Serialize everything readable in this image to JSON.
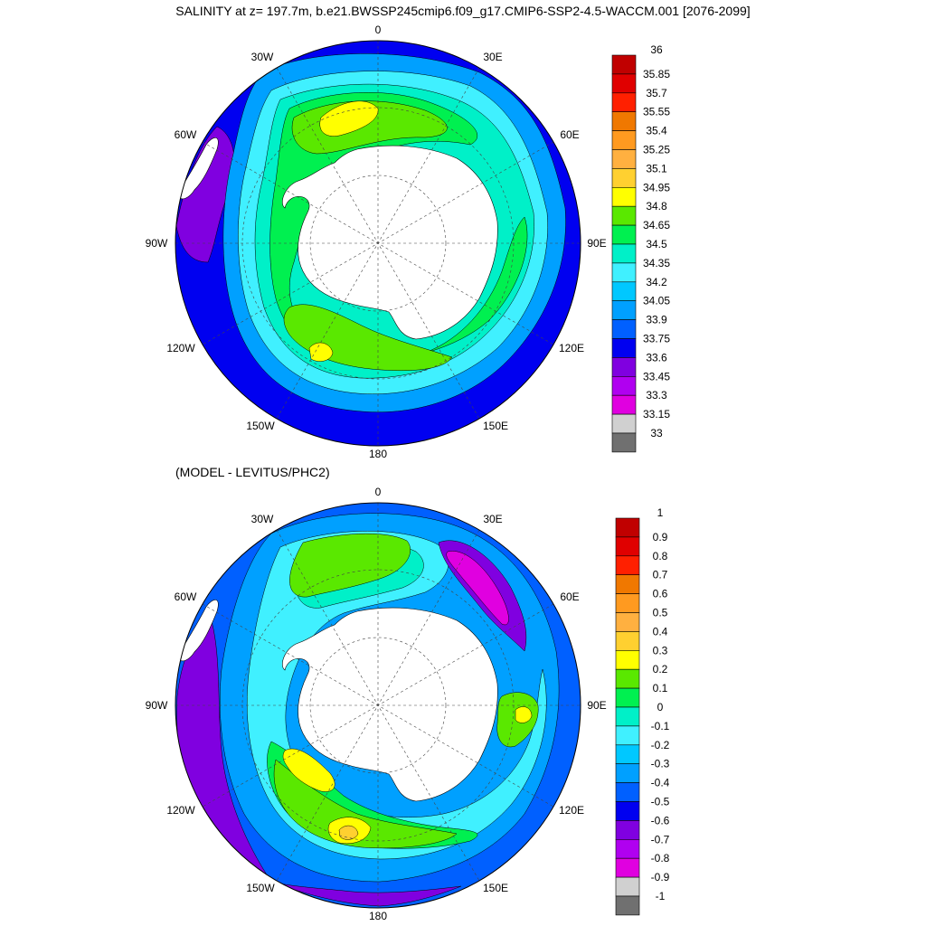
{
  "title": "SALINITY at z= 197.7m, b.e21.BWSSP245cmip6.f09_g17.CMIP6-SSP2-4.5-WACCM.001 [2076-2099]",
  "panels": [
    {
      "subtitle": "",
      "longitude_labels": {
        "north": "0",
        "nne": "30E",
        "ene": "60E",
        "east": "90E",
        "ese": "120E",
        "sse": "150E",
        "south": "180",
        "ssw": "150W",
        "wsw": "120W",
        "west": "90W",
        "wnw": "60W",
        "nnw": "30W"
      },
      "colorbar": {
        "labels": [
          "36",
          "35.85",
          "35.7",
          "35.55",
          "35.4",
          "35.25",
          "35.1",
          "34.95",
          "34.8",
          "34.65",
          "34.5",
          "34.35",
          "34.2",
          "34.05",
          "33.9",
          "33.75",
          "33.6",
          "33.45",
          "33.3",
          "33.15",
          "33"
        ],
        "colors": [
          "#c00000",
          "#e00000",
          "#ff2000",
          "#f07800",
          "#ff9a20",
          "#ffb040",
          "#ffd030",
          "#ffff00",
          "#5ae800",
          "#00f050",
          "#00f0c8",
          "#40f0ff",
          "#00c8ff",
          "#00a0ff",
          "#0060ff",
          "#0000f0",
          "#8000e0",
          "#b000f0",
          "#e000e0",
          "#d0d0d0",
          "#707070"
        ]
      },
      "field_colors": {
        "ocean_background": "#0000f0",
        "land": "#ffffff",
        "low_band": "#8000e0"
      }
    },
    {
      "subtitle": "(MODEL - LEVITUS/PHC2)",
      "longitude_labels": {
        "north": "0",
        "nne": "30E",
        "ene": "60E",
        "east": "90E",
        "ese": "120E",
        "sse": "150E",
        "south": "180",
        "ssw": "150W",
        "wsw": "120W",
        "west": "90W",
        "wnw": "60W",
        "nnw": "30W"
      },
      "colorbar": {
        "labels": [
          "1",
          "0.9",
          "0.8",
          "0.7",
          "0.6",
          "0.5",
          "0.4",
          "0.3",
          "0.2",
          "0.1",
          "0",
          "-0.1",
          "-0.2",
          "-0.3",
          "-0.4",
          "-0.5",
          "-0.6",
          "-0.7",
          "-0.8",
          "-0.9",
          "-1"
        ],
        "colors": [
          "#c00000",
          "#e00000",
          "#ff2000",
          "#f07800",
          "#ff9a20",
          "#ffb040",
          "#ffd030",
          "#ffff00",
          "#5ae800",
          "#00f050",
          "#00f0c8",
          "#40f0ff",
          "#00c8ff",
          "#00a0ff",
          "#0060ff",
          "#0000f0",
          "#8000e0",
          "#b000f0",
          "#e000e0",
          "#d0d0d0",
          "#707070"
        ]
      },
      "field_colors": {
        "ocean_background": "#0060ff",
        "land": "#ffffff",
        "low_band": "#8000e0"
      }
    }
  ]
}
